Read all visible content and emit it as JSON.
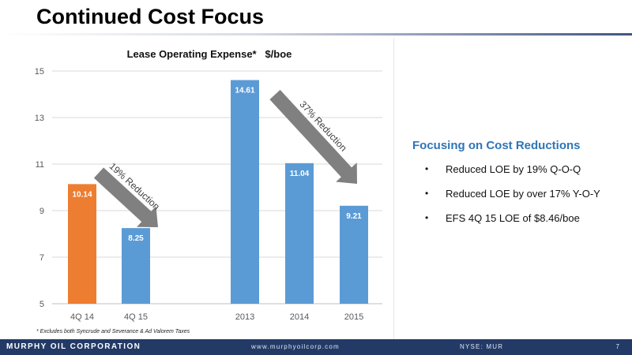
{
  "slide": {
    "title": "Continued Cost Focus",
    "footnote": "* Excludes both Syncrude and Severance & Ad Valorem Taxes"
  },
  "chart_data": {
    "type": "bar",
    "title": "Lease Operating Expense*   $/boe",
    "categories": [
      "4Q 14",
      "4Q 15",
      "2013",
      "2014",
      "2015"
    ],
    "values": [
      10.14,
      8.25,
      14.61,
      11.04,
      9.21
    ],
    "data_labels": [
      "10.14",
      "8.25",
      "14.61",
      "11.04",
      "9.21"
    ],
    "bar_colors": [
      "#ed7d31",
      "#5b9bd5",
      "#5b9bd5",
      "#5b9bd5",
      "#5b9bd5"
    ],
    "ylim": [
      5,
      15
    ],
    "yticks": [
      5,
      7,
      9,
      11,
      13,
      15
    ],
    "ytick_labels": [
      "5",
      "7",
      "9",
      "11",
      "13",
      "15"
    ],
    "grid": true,
    "annotations": [
      {
        "text": "19% Reduction",
        "from": "4Q 14",
        "to": "4Q 15",
        "color": "#808080"
      },
      {
        "text": "37% Reduction",
        "from": "2013",
        "to": "2015",
        "color": "#808080"
      }
    ]
  },
  "focus": {
    "heading": "Focusing on Cost Reductions",
    "bullets": [
      "Reduced LOE by 19% Q-O-Q",
      "Reduced LOE by over 17% Y-O-Y",
      "EFS 4Q 15 LOE of $8.46/boe"
    ],
    "bullet_symbol": "•"
  },
  "footer": {
    "company": "MURPHY OIL CORPORATION",
    "website": "www.murphyoilcorp.com",
    "ticker": "NYSE: MUR",
    "page": "7"
  },
  "colors": {
    "accent": "#2e75b6",
    "footer_bg": "#233a66",
    "orange_bar": "#ed7d31",
    "blue_bar": "#5b9bd5",
    "arrow": "#808080"
  }
}
